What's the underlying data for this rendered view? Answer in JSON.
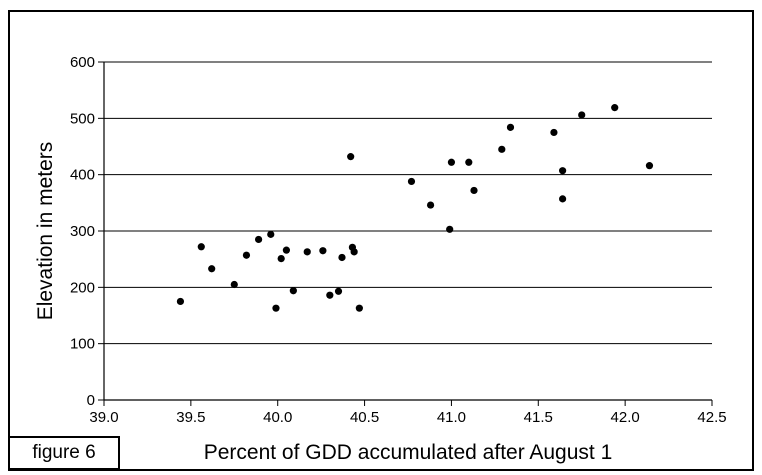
{
  "figure_label": "figure 6",
  "chart_data": {
    "type": "scatter",
    "title": "",
    "xlabel": "Percent of GDD accumulated after August 1",
    "ylabel": "Elevation in meters",
    "xlim": [
      39.0,
      42.5
    ],
    "ylim": [
      0,
      600
    ],
    "xticks": [
      "39.0",
      "39.5",
      "40.0",
      "40.5",
      "41.0",
      "41.5",
      "42.0",
      "42.5"
    ],
    "yticks": [
      "0",
      "100",
      "200",
      "300",
      "400",
      "500",
      "600"
    ],
    "grid": "horizontal",
    "legend": "none",
    "marker_color": "#000000",
    "points": [
      {
        "x": 39.44,
        "y": 175
      },
      {
        "x": 39.56,
        "y": 272
      },
      {
        "x": 39.62,
        "y": 233
      },
      {
        "x": 39.75,
        "y": 205
      },
      {
        "x": 39.82,
        "y": 257
      },
      {
        "x": 39.89,
        "y": 285
      },
      {
        "x": 39.96,
        "y": 294
      },
      {
        "x": 39.99,
        "y": 163
      },
      {
        "x": 40.02,
        "y": 251
      },
      {
        "x": 40.05,
        "y": 266
      },
      {
        "x": 40.09,
        "y": 194
      },
      {
        "x": 40.17,
        "y": 263
      },
      {
        "x": 40.26,
        "y": 265
      },
      {
        "x": 40.3,
        "y": 186
      },
      {
        "x": 40.35,
        "y": 193
      },
      {
        "x": 40.37,
        "y": 253
      },
      {
        "x": 40.42,
        "y": 432
      },
      {
        "x": 40.43,
        "y": 271
      },
      {
        "x": 40.44,
        "y": 263
      },
      {
        "x": 40.47,
        "y": 163
      },
      {
        "x": 40.77,
        "y": 388
      },
      {
        "x": 40.88,
        "y": 346
      },
      {
        "x": 40.99,
        "y": 303
      },
      {
        "x": 41.0,
        "y": 422
      },
      {
        "x": 41.1,
        "y": 422
      },
      {
        "x": 41.13,
        "y": 372
      },
      {
        "x": 41.29,
        "y": 445
      },
      {
        "x": 41.34,
        "y": 484
      },
      {
        "x": 41.59,
        "y": 475
      },
      {
        "x": 41.64,
        "y": 407
      },
      {
        "x": 41.64,
        "y": 357
      },
      {
        "x": 41.75,
        "y": 506
      },
      {
        "x": 41.94,
        "y": 519
      },
      {
        "x": 42.14,
        "y": 416
      }
    ]
  }
}
